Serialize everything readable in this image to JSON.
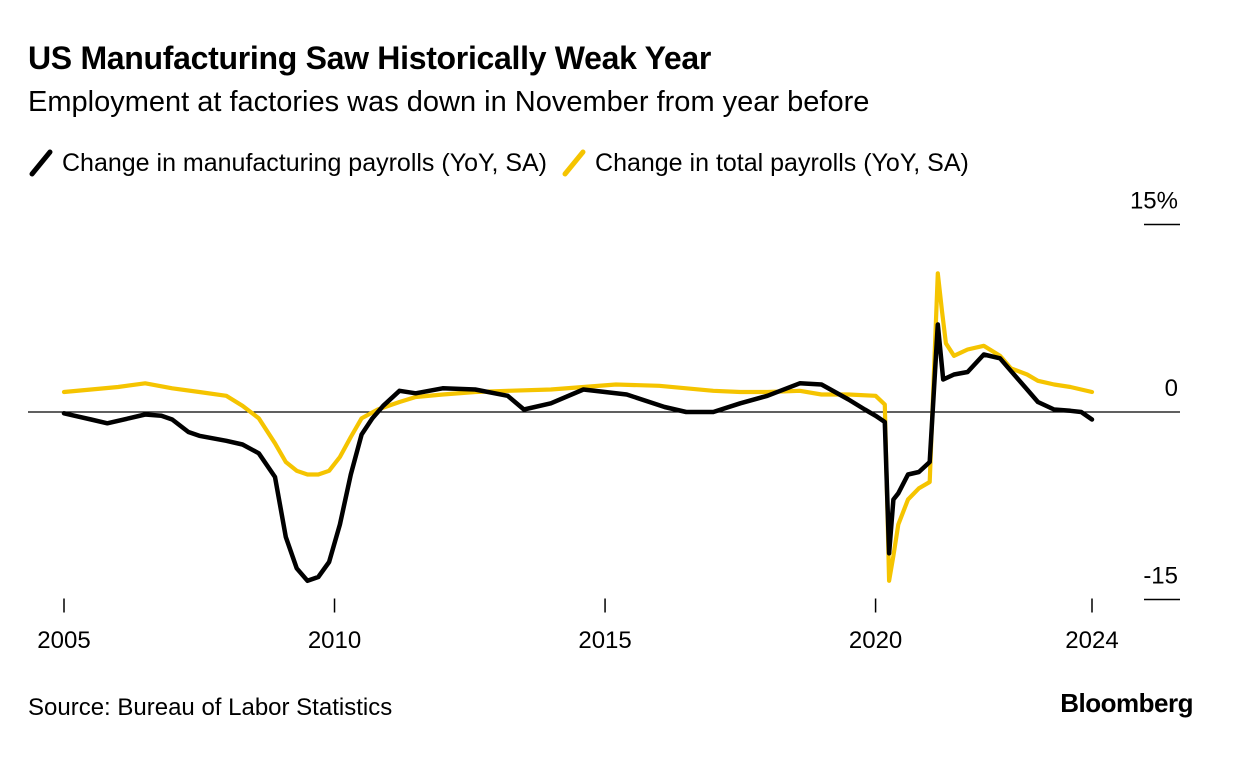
{
  "title": "US Manufacturing Saw Historically Weak Year",
  "subtitle": "Employment at factories was down in November from year before",
  "source": "Source: Bureau of Labor Statistics",
  "brand": "Bloomberg",
  "colors": {
    "manufacturing": "#000000",
    "total": "#f5c400",
    "axis": "#000000"
  },
  "chart_data": {
    "type": "line",
    "title": "US Manufacturing Saw Historically Weak Year",
    "xlabel": "",
    "ylabel": "",
    "xlim": [
      2005,
      2024
    ],
    "ylim": [
      -15,
      15
    ],
    "y_unit": "%",
    "x_ticks": [
      "2005",
      "2010",
      "2015",
      "2020",
      "2024"
    ],
    "x_tick_values": [
      2005,
      2010,
      2015,
      2020,
      2024
    ],
    "y_ticks": [
      "15%",
      "0",
      "-15"
    ],
    "y_tick_values": [
      15,
      0,
      -15
    ],
    "legend": [
      "Change in manufacturing payrolls (YoY, SA)",
      "Change in total payrolls (YoY, SA)"
    ],
    "series": [
      {
        "name": "Change in manufacturing payrolls (YoY, SA)",
        "color": "#000000",
        "x": [
          2005.0,
          2005.2,
          2005.5,
          2005.8,
          2006.2,
          2006.5,
          2006.8,
          2007.0,
          2007.3,
          2007.5,
          2008.0,
          2008.3,
          2008.6,
          2008.9,
          2009.1,
          2009.3,
          2009.5,
          2009.7,
          2009.9,
          2010.1,
          2010.3,
          2010.5,
          2010.7,
          2010.9,
          2011.2,
          2011.5,
          2012.0,
          2012.6,
          2013.2,
          2013.5,
          2014.0,
          2014.6,
          2015.4,
          2016.1,
          2016.5,
          2017.0,
          2017.5,
          2018.0,
          2018.6,
          2019.0,
          2019.5,
          2019.8,
          2020.0,
          2020.17,
          2020.25,
          2020.33,
          2020.42,
          2020.6,
          2020.8,
          2021.0,
          2021.15,
          2021.25,
          2021.35,
          2021.45,
          2021.7,
          2022.0,
          2022.3,
          2022.5,
          2022.8,
          2023.0,
          2023.3,
          2023.6,
          2023.8,
          2024.0
        ],
        "values": [
          -0.1,
          -0.3,
          -0.6,
          -0.9,
          -0.5,
          -0.2,
          -0.3,
          -0.6,
          -1.6,
          -1.9,
          -2.3,
          -2.6,
          -3.3,
          -5.2,
          -10.0,
          -12.5,
          -13.5,
          -13.2,
          -12.0,
          -9.0,
          -5.0,
          -1.8,
          -0.5,
          0.5,
          1.7,
          1.5,
          1.9,
          1.8,
          1.3,
          0.2,
          0.7,
          1.8,
          1.4,
          0.4,
          0.0,
          0.0,
          0.7,
          1.3,
          2.3,
          2.2,
          1.0,
          0.2,
          -0.3,
          -0.8,
          -11.3,
          -7.0,
          -6.5,
          -5.0,
          -4.8,
          -4.0,
          7.0,
          2.6,
          2.8,
          3.0,
          3.2,
          4.6,
          4.3,
          3.3,
          1.8,
          0.8,
          0.2,
          0.1,
          0.0,
          -0.6
        ]
      },
      {
        "name": "Change in total payrolls (YoY, SA)",
        "color": "#f5c400",
        "x": [
          2005.0,
          2005.5,
          2006.0,
          2006.5,
          2007.0,
          2007.5,
          2008.0,
          2008.3,
          2008.6,
          2008.9,
          2009.1,
          2009.3,
          2009.5,
          2009.7,
          2009.9,
          2010.1,
          2010.3,
          2010.5,
          2010.8,
          2011.2,
          2011.5,
          2012.0,
          2012.6,
          2013.2,
          2014.0,
          2014.6,
          2015.2,
          2016.0,
          2017.0,
          2017.5,
          2018.0,
          2018.6,
          2019.0,
          2019.5,
          2020.0,
          2020.17,
          2020.25,
          2020.33,
          2020.42,
          2020.6,
          2020.8,
          2021.0,
          2021.15,
          2021.23,
          2021.3,
          2021.45,
          2021.7,
          2022.0,
          2022.3,
          2022.5,
          2022.8,
          2023.0,
          2023.3,
          2023.6,
          2023.8,
          2024.0
        ],
        "values": [
          1.6,
          1.8,
          2.0,
          2.3,
          1.9,
          1.6,
          1.3,
          0.5,
          -0.5,
          -2.5,
          -4.0,
          -4.7,
          -5.0,
          -5.0,
          -4.7,
          -3.6,
          -2.0,
          -0.5,
          0.2,
          0.8,
          1.2,
          1.4,
          1.6,
          1.7,
          1.8,
          2.0,
          2.2,
          2.1,
          1.7,
          1.6,
          1.6,
          1.7,
          1.4,
          1.4,
          1.3,
          0.6,
          -13.5,
          -11.5,
          -9.0,
          -7.0,
          -6.1,
          -5.6,
          11.1,
          8.0,
          5.5,
          4.5,
          5.0,
          5.3,
          4.5,
          3.5,
          3.0,
          2.5,
          2.2,
          2.0,
          1.8,
          1.6
        ]
      }
    ]
  }
}
